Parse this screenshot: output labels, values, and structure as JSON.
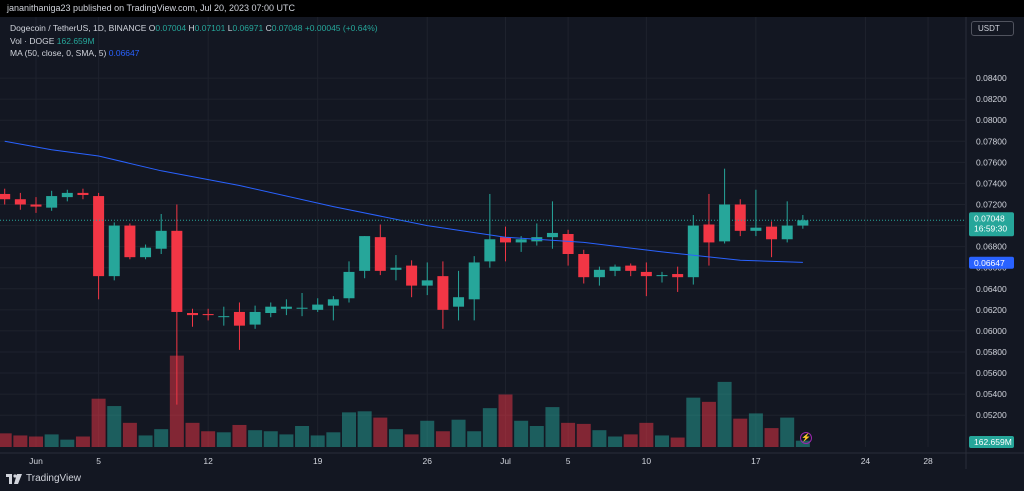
{
  "header": {
    "published": "jananithaniga23 published on TradingView.com, Jul 20, 2023 07:00 UTC"
  },
  "legend": {
    "symbol": "Dogecoin / TetherUS, 1D, BINANCE",
    "o_label": "O",
    "o_val": "0.07004",
    "h_label": "H",
    "h_val": "0.07101",
    "l_label": "L",
    "l_val": "0.06971",
    "c_label": "C",
    "c_val": "0.07048",
    "change": "+0.00045 (+0.64%)",
    "vol_label": "Vol · DOGE",
    "vol_val": "162.659M",
    "ma_label": "MA (50, close, 0, SMA, 5)",
    "ma_val": "0.06647"
  },
  "currency_button": "USDT",
  "price_badge": {
    "price": "0.07048",
    "countdown": "16:59:30"
  },
  "ma_badge": "0.06647",
  "vol_badge": "162.659M",
  "branding": {
    "logo_text": "TradingView"
  },
  "colors": {
    "up": "#26a69a",
    "down": "#f23645",
    "ma": "#2962ff",
    "background": "#131722"
  },
  "chart_data": {
    "type": "candlestick",
    "title": "Dogecoin / TetherUS, 1D, BINANCE",
    "y_ticks": [
      "0.08400",
      "0.08200",
      "0.08000",
      "0.07800",
      "0.07600",
      "0.07400",
      "0.07200",
      "0.07000",
      "0.06800",
      "0.06600",
      "0.06400",
      "0.06200",
      "0.06000",
      "0.05800",
      "0.05600",
      "0.05400",
      "0.05200"
    ],
    "x_ticks": [
      {
        "label": "Jun",
        "day": 1
      },
      {
        "label": "5",
        "day": 5
      },
      {
        "label": "12",
        "day": 12
      },
      {
        "label": "19",
        "day": 19
      },
      {
        "label": "26",
        "day": 26
      },
      {
        "label": "Jul",
        "day": 31
      },
      {
        "label": "5",
        "day": 35
      },
      {
        "label": "10",
        "day": 40
      },
      {
        "label": "17",
        "day": 47
      },
      {
        "label": "24",
        "day": 54
      },
      {
        "label": "28",
        "day": 58
      }
    ],
    "ylim": [
      0.0505,
      0.086
    ],
    "candles": [
      {
        "day": -1,
        "o": 0.073,
        "h": 0.0735,
        "l": 0.072,
        "c": 0.0725,
        "v": 13
      },
      {
        "day": 0,
        "o": 0.0725,
        "h": 0.0731,
        "l": 0.0715,
        "c": 0.072,
        "v": 11
      },
      {
        "day": 1,
        "o": 0.072,
        "h": 0.0727,
        "l": 0.0712,
        "c": 0.0718,
        "v": 10
      },
      {
        "day": 2,
        "o": 0.0717,
        "h": 0.0733,
        "l": 0.0714,
        "c": 0.0728,
        "v": 12
      },
      {
        "day": 3,
        "o": 0.0727,
        "h": 0.0734,
        "l": 0.0723,
        "c": 0.0731,
        "v": 7
      },
      {
        "day": 4,
        "o": 0.0731,
        "h": 0.0735,
        "l": 0.0725,
        "c": 0.0729,
        "v": 10
      },
      {
        "day": 5,
        "o": 0.0728,
        "h": 0.0731,
        "l": 0.063,
        "c": 0.0652,
        "v": 46
      },
      {
        "day": 6,
        "o": 0.0652,
        "h": 0.0703,
        "l": 0.0648,
        "c": 0.07,
        "v": 39
      },
      {
        "day": 7,
        "o": 0.07,
        "h": 0.0702,
        "l": 0.0668,
        "c": 0.067,
        "v": 23
      },
      {
        "day": 8,
        "o": 0.067,
        "h": 0.0682,
        "l": 0.0668,
        "c": 0.0679,
        "v": 11
      },
      {
        "day": 9,
        "o": 0.0678,
        "h": 0.0711,
        "l": 0.0673,
        "c": 0.0695,
        "v": 17
      },
      {
        "day": 10,
        "o": 0.0695,
        "h": 0.072,
        "l": 0.053,
        "c": 0.0618,
        "v": 87
      },
      {
        "day": 11,
        "o": 0.0617,
        "h": 0.0621,
        "l": 0.0604,
        "c": 0.0615,
        "v": 23
      },
      {
        "day": 12,
        "o": 0.0616,
        "h": 0.0621,
        "l": 0.061,
        "c": 0.0615,
        "v": 15
      },
      {
        "day": 13,
        "o": 0.0614,
        "h": 0.0623,
        "l": 0.0605,
        "c": 0.0614,
        "v": 14
      },
      {
        "day": 14,
        "o": 0.0618,
        "h": 0.0627,
        "l": 0.0582,
        "c": 0.0605,
        "v": 21
      },
      {
        "day": 15,
        "o": 0.0606,
        "h": 0.0624,
        "l": 0.0602,
        "c": 0.0618,
        "v": 16
      },
      {
        "day": 16,
        "o": 0.0617,
        "h": 0.0627,
        "l": 0.0613,
        "c": 0.0623,
        "v": 15
      },
      {
        "day": 17,
        "o": 0.0621,
        "h": 0.063,
        "l": 0.0615,
        "c": 0.0623,
        "v": 12
      },
      {
        "day": 18,
        "o": 0.0622,
        "h": 0.0636,
        "l": 0.0614,
        "c": 0.0622,
        "v": 20
      },
      {
        "day": 19,
        "o": 0.062,
        "h": 0.0631,
        "l": 0.0618,
        "c": 0.0625,
        "v": 11
      },
      {
        "day": 20,
        "o": 0.0624,
        "h": 0.0633,
        "l": 0.061,
        "c": 0.063,
        "v": 14
      },
      {
        "day": 21,
        "o": 0.0631,
        "h": 0.0666,
        "l": 0.0627,
        "c": 0.0656,
        "v": 33
      },
      {
        "day": 22,
        "o": 0.0657,
        "h": 0.069,
        "l": 0.065,
        "c": 0.069,
        "v": 34
      },
      {
        "day": 23,
        "o": 0.0689,
        "h": 0.0701,
        "l": 0.0653,
        "c": 0.0657,
        "v": 28
      },
      {
        "day": 24,
        "o": 0.0658,
        "h": 0.0672,
        "l": 0.0648,
        "c": 0.066,
        "v": 17
      },
      {
        "day": 25,
        "o": 0.0662,
        "h": 0.0667,
        "l": 0.0632,
        "c": 0.0643,
        "v": 12
      },
      {
        "day": 26,
        "o": 0.0643,
        "h": 0.0665,
        "l": 0.0634,
        "c": 0.0648,
        "v": 25
      },
      {
        "day": 27,
        "o": 0.0652,
        "h": 0.0666,
        "l": 0.0602,
        "c": 0.062,
        "v": 15
      },
      {
        "day": 28,
        "o": 0.0623,
        "h": 0.0657,
        "l": 0.061,
        "c": 0.0632,
        "v": 26
      },
      {
        "day": 29,
        "o": 0.063,
        "h": 0.0671,
        "l": 0.061,
        "c": 0.0665,
        "v": 15
      },
      {
        "day": 30,
        "o": 0.0666,
        "h": 0.073,
        "l": 0.066,
        "c": 0.0687,
        "v": 37
      },
      {
        "day": 31,
        "o": 0.0689,
        "h": 0.0699,
        "l": 0.0666,
        "c": 0.0684,
        "v": 50
      },
      {
        "day": 32,
        "o": 0.0684,
        "h": 0.069,
        "l": 0.0675,
        "c": 0.0687,
        "v": 25
      },
      {
        "day": 33,
        "o": 0.0685,
        "h": 0.0702,
        "l": 0.0681,
        "c": 0.0689,
        "v": 20
      },
      {
        "day": 34,
        "o": 0.0689,
        "h": 0.0723,
        "l": 0.0678,
        "c": 0.0693,
        "v": 38
      },
      {
        "day": 35,
        "o": 0.0692,
        "h": 0.0696,
        "l": 0.0662,
        "c": 0.0673,
        "v": 23
      },
      {
        "day": 36,
        "o": 0.0673,
        "h": 0.0677,
        "l": 0.0645,
        "c": 0.0651,
        "v": 22
      },
      {
        "day": 37,
        "o": 0.0651,
        "h": 0.0661,
        "l": 0.0643,
        "c": 0.0658,
        "v": 16
      },
      {
        "day": 38,
        "o": 0.0657,
        "h": 0.0663,
        "l": 0.0652,
        "c": 0.0661,
        "v": 10
      },
      {
        "day": 39,
        "o": 0.0662,
        "h": 0.0664,
        "l": 0.0652,
        "c": 0.0657,
        "v": 12
      },
      {
        "day": 40,
        "o": 0.0656,
        "h": 0.0665,
        "l": 0.0633,
        "c": 0.0652,
        "v": 23
      },
      {
        "day": 41,
        "o": 0.0652,
        "h": 0.0656,
        "l": 0.0646,
        "c": 0.0653,
        "v": 11
      },
      {
        "day": 42,
        "o": 0.0654,
        "h": 0.0661,
        "l": 0.0637,
        "c": 0.0651,
        "v": 9
      },
      {
        "day": 43,
        "o": 0.0651,
        "h": 0.071,
        "l": 0.0644,
        "c": 0.07,
        "v": 47
      },
      {
        "day": 44,
        "o": 0.0701,
        "h": 0.073,
        "l": 0.0662,
        "c": 0.0684,
        "v": 43
      },
      {
        "day": 45,
        "o": 0.0685,
        "h": 0.0754,
        "l": 0.0683,
        "c": 0.072,
        "v": 62
      },
      {
        "day": 46,
        "o": 0.072,
        "h": 0.0725,
        "l": 0.069,
        "c": 0.0695,
        "v": 27
      },
      {
        "day": 47,
        "o": 0.0695,
        "h": 0.0734,
        "l": 0.069,
        "c": 0.0698,
        "v": 32
      },
      {
        "day": 48,
        "o": 0.0699,
        "h": 0.0704,
        "l": 0.067,
        "c": 0.0687,
        "v": 18
      },
      {
        "day": 49,
        "o": 0.0687,
        "h": 0.0723,
        "l": 0.0684,
        "c": 0.07,
        "v": 28
      },
      {
        "day": 50,
        "o": 0.07,
        "h": 0.071,
        "l": 0.0697,
        "c": 0.0705,
        "v": 6
      }
    ],
    "ma_line": [
      {
        "day": -1,
        "v": 0.078
      },
      {
        "day": 2,
        "v": 0.0772
      },
      {
        "day": 5,
        "v": 0.0766
      },
      {
        "day": 9,
        "v": 0.0752
      },
      {
        "day": 14,
        "v": 0.0738
      },
      {
        "day": 20,
        "v": 0.0718
      },
      {
        "day": 26,
        "v": 0.07
      },
      {
        "day": 31,
        "v": 0.0689
      },
      {
        "day": 36,
        "v": 0.0684
      },
      {
        "day": 41,
        "v": 0.0675
      },
      {
        "day": 46,
        "v": 0.0667
      },
      {
        "day": 50,
        "v": 0.0665
      }
    ]
  }
}
